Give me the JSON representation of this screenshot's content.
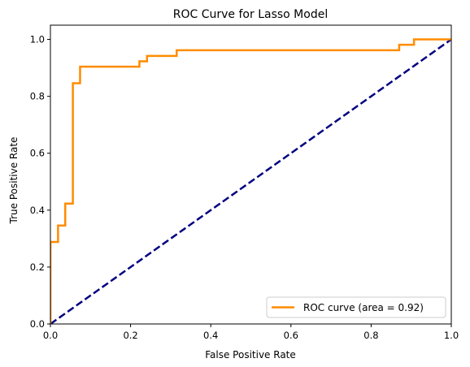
{
  "chart_data": {
    "type": "line",
    "title": "ROC Curve for Lasso Model",
    "xlabel": "False Positive Rate",
    "ylabel": "True Positive Rate",
    "xlim": [
      0.0,
      1.0
    ],
    "ylim": [
      0.0,
      1.05
    ],
    "x_ticks": [
      0.0,
      0.2,
      0.4,
      0.6,
      0.8,
      1.0
    ],
    "x_tick_labels": [
      "0.0",
      "0.2",
      "0.4",
      "0.6",
      "0.8",
      "1.0"
    ],
    "y_ticks": [
      0.0,
      0.2,
      0.4,
      0.6,
      0.8,
      1.0
    ],
    "y_tick_labels": [
      "0.0",
      "0.2",
      "0.4",
      "0.6",
      "0.8",
      "1.0"
    ],
    "grid": false,
    "legend_position": "lower-right",
    "series": [
      {
        "name": "ROC curve (area = 0.92)",
        "color": "#ff8c00",
        "style": "solid",
        "x": [
          0.0,
          0.0,
          0.0,
          0.019,
          0.019,
          0.037,
          0.037,
          0.056,
          0.056,
          0.074,
          0.074,
          0.222,
          0.222,
          0.241,
          0.241,
          0.315,
          0.315,
          0.87,
          0.87,
          0.907,
          0.907,
          1.0
        ],
        "y": [
          0.0,
          0.288,
          0.288,
          0.288,
          0.346,
          0.346,
          0.423,
          0.423,
          0.846,
          0.846,
          0.904,
          0.904,
          0.923,
          0.923,
          0.942,
          0.942,
          0.962,
          0.962,
          0.981,
          0.981,
          1.0,
          1.0
        ]
      },
      {
        "name": "",
        "color": "#000080",
        "style": "dashed",
        "x": [
          0.0,
          1.0
        ],
        "y": [
          0.0,
          1.0
        ]
      }
    ]
  }
}
